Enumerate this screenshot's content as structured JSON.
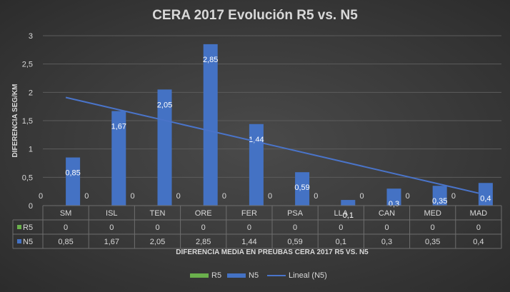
{
  "chart_data": {
    "type": "bar",
    "title": "CERA 2017 Evolución R5 vs. N5",
    "xlabel": "DIFERENCIA MEDIA EN PREUBAS CERA 2017 R5 VS. N5",
    "ylabel": "DIFERENCIA SEG/KM",
    "ylim": [
      0,
      3
    ],
    "yticks": [
      "0",
      "0,5",
      "1",
      "1,5",
      "2",
      "2,5",
      "3"
    ],
    "categories": [
      "SM",
      "ISL",
      "TEN",
      "ORE",
      "FER",
      "PSA",
      "LLA",
      "CAN",
      "MED",
      "MAD"
    ],
    "series": [
      {
        "name": "R5",
        "color": "#6ab04c",
        "values": [
          0,
          0,
          0,
          0,
          0,
          0,
          0,
          0,
          0,
          0
        ],
        "labels": [
          "0",
          "0",
          "0",
          "0",
          "0",
          "0",
          "0",
          "0",
          "0",
          "0"
        ]
      },
      {
        "name": "N5",
        "color": "#4472c4",
        "values": [
          0.85,
          1.67,
          2.05,
          2.85,
          1.44,
          0.59,
          0.1,
          0.3,
          0.35,
          0.4
        ],
        "labels": [
          "0,85",
          "1,67",
          "2,05",
          "2,85",
          "1,44",
          "0,59",
          "0,1",
          "0,3",
          "0,35",
          "0,4"
        ]
      }
    ],
    "trendline": {
      "name": "Lineal (N5)",
      "color": "#4a74c9",
      "start": 1.91,
      "end": 0.22
    },
    "grid": true,
    "data_table": true,
    "legend_position": "bottom"
  }
}
